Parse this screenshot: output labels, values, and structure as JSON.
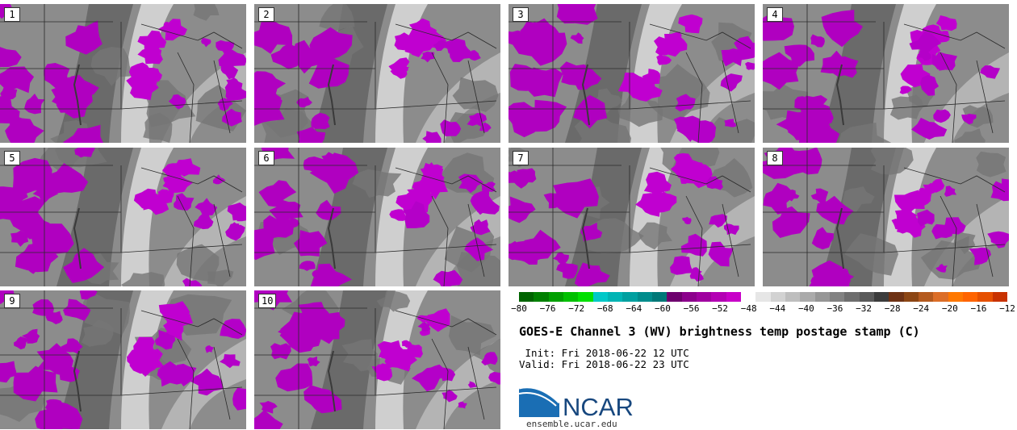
{
  "panels": [
    {
      "label": "1",
      "seed": 11
    },
    {
      "label": "2",
      "seed": 23
    },
    {
      "label": "3",
      "seed": 37
    },
    {
      "label": "4",
      "seed": 41
    },
    {
      "label": "5",
      "seed": 53
    },
    {
      "label": "6",
      "seed": 67
    },
    {
      "label": "7",
      "seed": 71
    },
    {
      "label": "8",
      "seed": 83
    },
    {
      "label": "9",
      "seed": 97
    },
    {
      "label": "10",
      "seed": 101
    }
  ],
  "colorbar": {
    "colors": [
      "#006400",
      "#008000",
      "#00a000",
      "#00c000",
      "#00e000",
      "#00c8c8",
      "#00b4b4",
      "#00a0a0",
      "#008c8c",
      "#007878",
      "#6e006e",
      "#8c008c",
      "#a000a0",
      "#b400b4",
      "#c800c8",
      "#ffffff",
      "#e6e6e6",
      "#d2d2d2",
      "#bebebe",
      "#aaaaaa",
      "#969696",
      "#828282",
      "#6e6e6e",
      "#5a5a5a",
      "#3c3c3c",
      "#6e3214",
      "#8c4614",
      "#b45a1e",
      "#dc6e28",
      "#ff7800",
      "#ff6400",
      "#e65000",
      "#c83200"
    ],
    "tick_labels": [
      "−80",
      "−76",
      "−72",
      "−68",
      "−64",
      "−60",
      "−56",
      "−52",
      "−48",
      "−44",
      "−40",
      "−36",
      "−32",
      "−28",
      "−24",
      "−20",
      "−16",
      "−12"
    ],
    "min": -80,
    "max": -12,
    "step": 4
  },
  "title": "GOES-E Channel 3 (WV) brightness temp postage stamp (C)",
  "init_line": " Init: Fri 2018-06-22 12 UTC",
  "valid_line": "Valid: Fri 2018-06-22 23 UTC",
  "logo": {
    "text": "NCAR",
    "url": "ensemble.ucar.edu"
  },
  "colors": {
    "cold_cloud": "#b400c8",
    "dry_band": "#6e6e6e",
    "moist_band": "#d8d8d8",
    "borders": "#2a2a2a"
  }
}
